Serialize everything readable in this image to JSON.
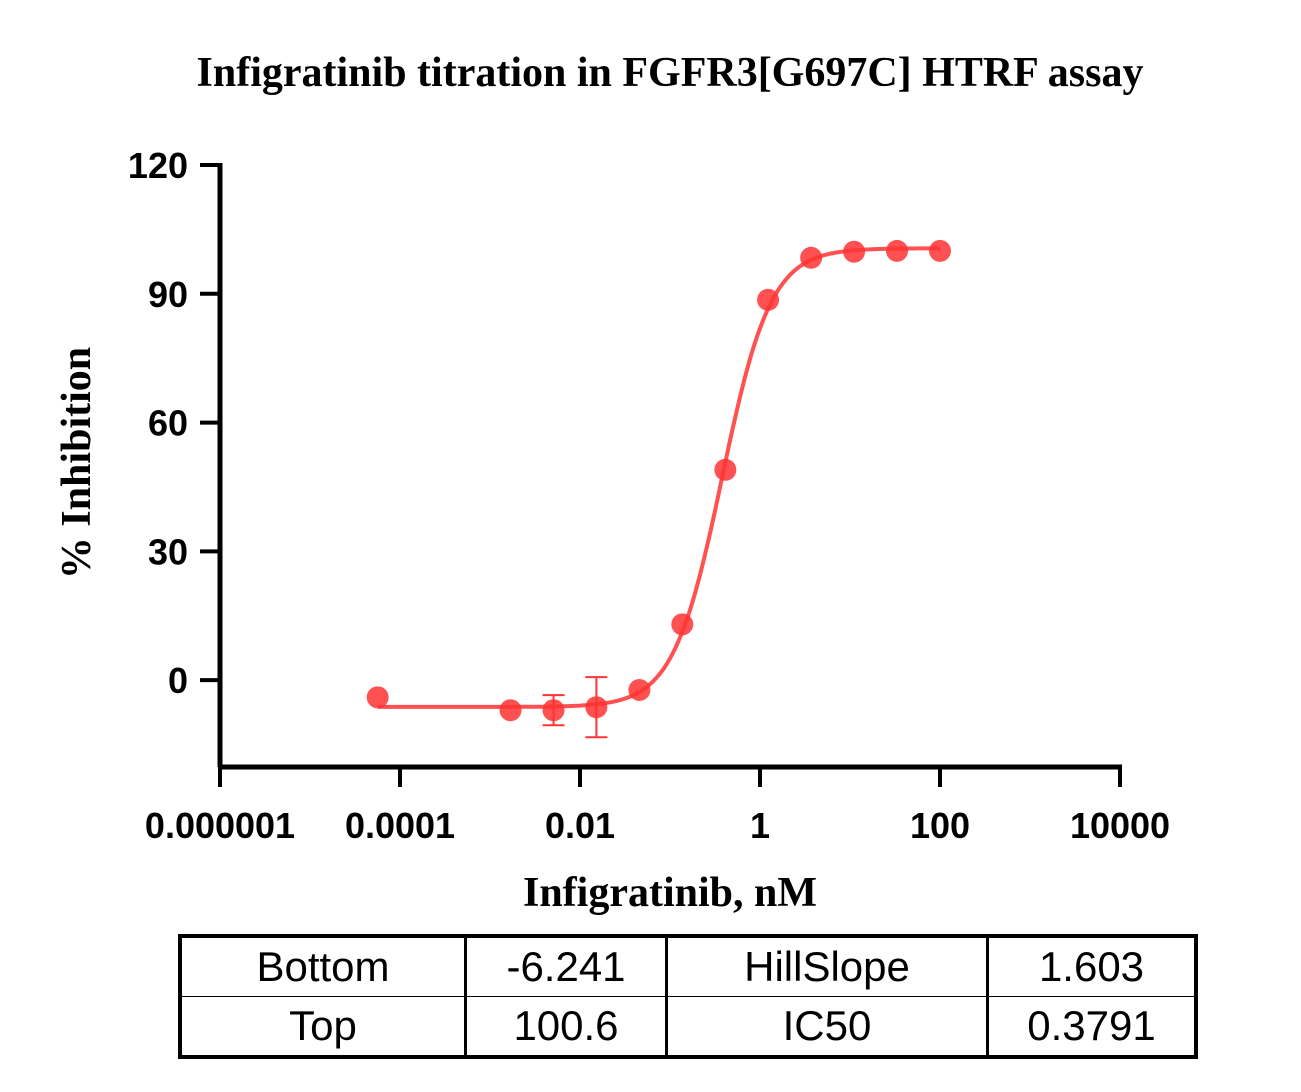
{
  "chart_data": {
    "type": "scatter",
    "title": "Infigratinib titration in FGFR3[G697C] HTRF assay",
    "xlabel": "Infigratinib, nM",
    "ylabel": "% Inhibition",
    "xscale": "log",
    "xlim": [
      1e-06,
      10000
    ],
    "ylim": [
      -20,
      120
    ],
    "xticks": [
      1e-06,
      0.0001,
      0.01,
      1,
      100,
      10000
    ],
    "xtick_labels": [
      "0.000001",
      "0.0001",
      "0.01",
      "1",
      "100",
      "10000"
    ],
    "yticks": [
      0,
      30,
      60,
      90,
      120
    ],
    "ytick_labels": [
      "0",
      "30",
      "60",
      "90",
      "120"
    ],
    "color": "#ff3333",
    "series": [
      {
        "name": "Infigratinib",
        "x": [
          5.65e-05,
          0.00169,
          0.00508,
          0.0152,
          0.0457,
          0.137,
          0.412,
          1.23,
          3.7,
          11.1,
          33.3,
          100
        ],
        "y": [
          -4.0,
          -7.0,
          -7.0,
          -6.3,
          -2.3,
          13.0,
          49.0,
          88.6,
          98.4,
          99.8,
          100.0,
          100.0
        ],
        "yerr": [
          0,
          0,
          3.5,
          7.0,
          0,
          0,
          0,
          0,
          0,
          0,
          0,
          0
        ]
      }
    ],
    "fit": {
      "model": "4PL",
      "bottom": -6.241,
      "top": 100.6,
      "hillslope": 1.603,
      "ic50": 0.3791
    }
  },
  "table": {
    "rows": [
      [
        "Bottom",
        "-6.241",
        "HillSlope",
        "1.603"
      ],
      [
        "Top",
        "100.6",
        "IC50",
        "0.3791"
      ]
    ]
  }
}
